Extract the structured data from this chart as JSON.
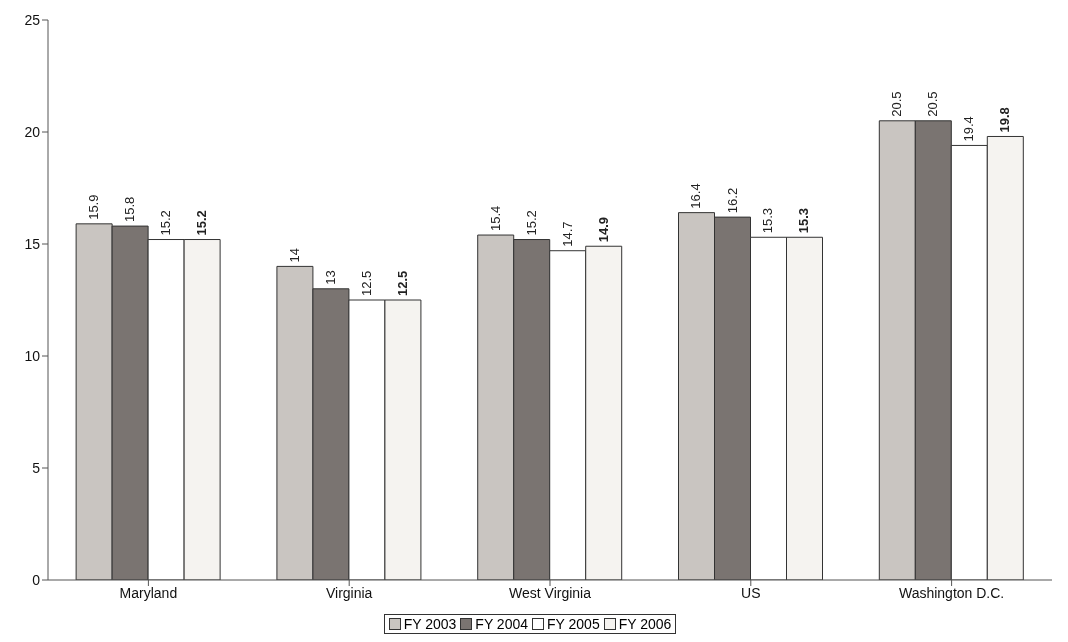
{
  "chart_data": {
    "type": "bar",
    "categories": [
      "Maryland",
      "Virginia",
      "West Virginia",
      "US",
      "Washington D.C."
    ],
    "series": [
      {
        "name": "FY 2003",
        "color": "#c9c5c1",
        "values": [
          15.9,
          14,
          15.4,
          16.4,
          20.5
        ]
      },
      {
        "name": "FY 2004",
        "color": "#7a7471",
        "values": [
          15.8,
          13,
          15.2,
          16.2,
          20.5
        ]
      },
      {
        "name": "FY 2005",
        "color": "#ffffff",
        "values": [
          15.2,
          12.5,
          14.7,
          15.3,
          19.4
        ]
      },
      {
        "name": "FY 2006",
        "color": "#f5f3f0",
        "values": [
          15.2,
          12.5,
          14.9,
          15.3,
          19.8
        ]
      }
    ],
    "ylim": [
      0,
      25
    ],
    "yticks": [
      0,
      5,
      10,
      15,
      20,
      25
    ],
    "grid": false,
    "legend": "bottom",
    "data_labels": true
  }
}
